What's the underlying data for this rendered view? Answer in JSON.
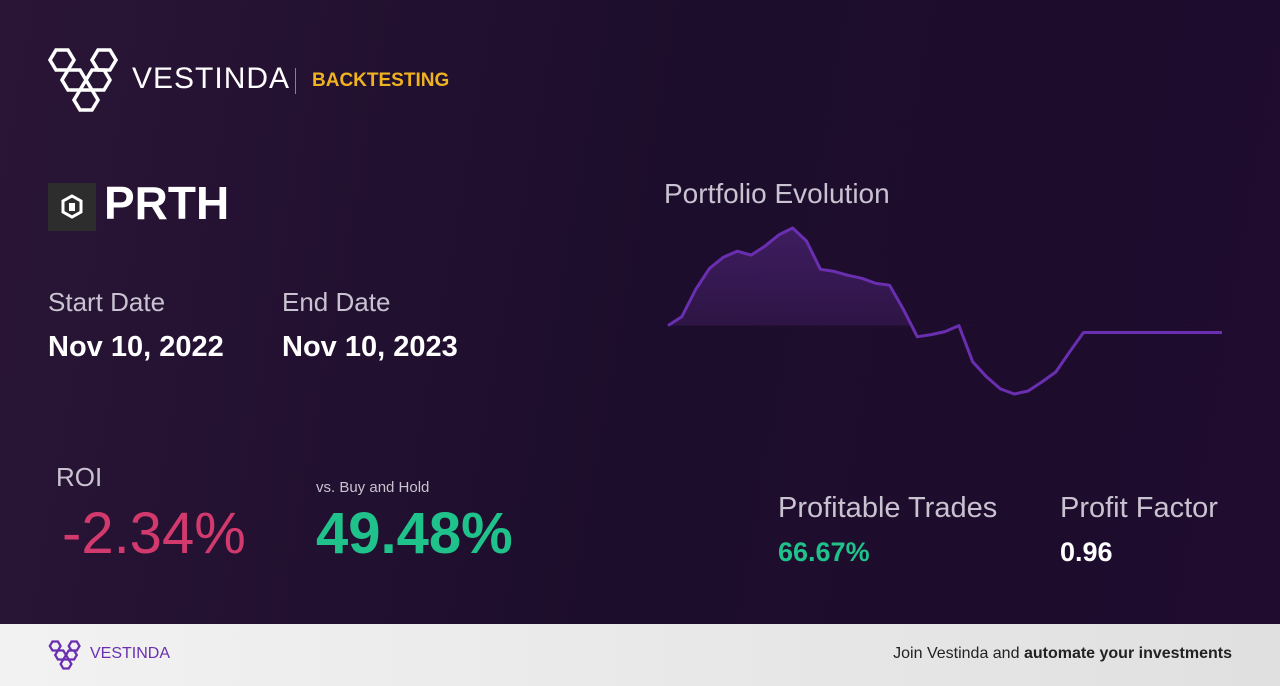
{
  "header": {
    "brand": "VESTINDA",
    "section": "BACKTESTING"
  },
  "ticker": "PRTH",
  "start_date": {
    "label": "Start Date",
    "value": "Nov 10, 2022"
  },
  "end_date": {
    "label": "End Date",
    "value": "Nov 10, 2023"
  },
  "roi": {
    "label": "ROI",
    "value": "-2.34%"
  },
  "buy_and_hold": {
    "label": "vs. Buy and Hold",
    "value": "49.48%"
  },
  "profitable_trades": {
    "label": "Profitable Trades",
    "value": "66.67%"
  },
  "profit_factor": {
    "label": "Profit Factor",
    "value": "0.96"
  },
  "chart_data": {
    "type": "line",
    "title": "Portfolio Evolution",
    "color": "#6a2fb0",
    "values": [
      0,
      3.0,
      12.0,
      19.0,
      22.7,
      24.7,
      23.4,
      26.4,
      30.1,
      32.4,
      28.1,
      18.7,
      18.0,
      16.7,
      15.7,
      14.0,
      13.4,
      5.3,
      -3.7,
      -3.0,
      -2.0,
      0,
      -12.0,
      -17.0,
      -21.0,
      -22.7,
      -21.7,
      -18.7,
      -15.4,
      -8.7,
      -2.3,
      -2.3,
      -2.3,
      -2.3,
      -2.3,
      -2.3,
      -2.3,
      -2.3,
      -2.3,
      -2.3,
      -2.3
    ]
  },
  "footer": {
    "brand": "VESTINDA",
    "text": "Join Vestinda and",
    "emphasis": "automate your investments"
  }
}
